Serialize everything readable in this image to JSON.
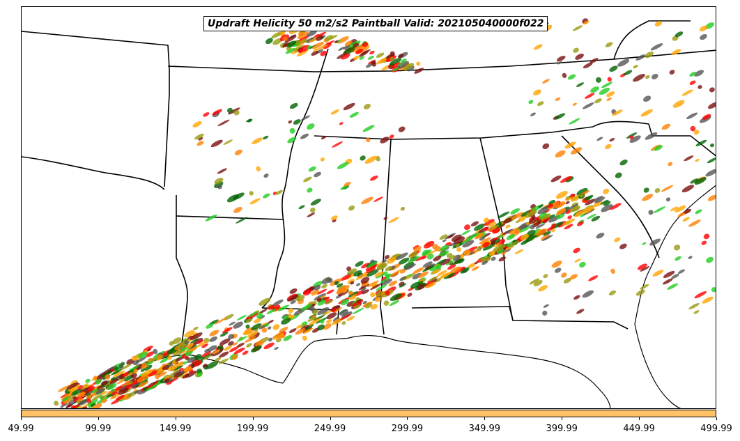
{
  "title": "Updraft Helicity 50 m2/s2 Paintball Valid: 202105040000f022",
  "colorbar": {
    "color": "#ffc266",
    "ticks": [
      "49.99",
      "99.99",
      "149.99",
      "199.99",
      "249.99",
      "299.99",
      "349.99",
      "399.99",
      "449.99",
      "499.99"
    ]
  },
  "colors": {
    "paintball": [
      "#ff0000",
      "#ff7f00",
      "#ffa500",
      "#22cc22",
      "#9a9a10",
      "#7a1010",
      "#006400",
      "#555555"
    ],
    "boundary": "#000000"
  }
}
